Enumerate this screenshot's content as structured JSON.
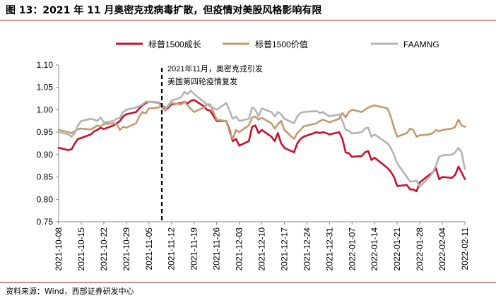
{
  "title": "图 13：2021 年 11 月奥密克戎病毒扩散，但疫情对美股风格影响有限",
  "source": "资料来源：Wind，西部证券研发中心",
  "annotation_line1": "2021年11月，奥密克戎引发",
  "annotation_line2": "美国第四轮疫情复发",
  "chart_data": {
    "type": "line",
    "title": "",
    "xlabel": "",
    "ylabel": "",
    "ylim": [
      0.75,
      1.1
    ],
    "yticks": [
      0.75,
      0.8,
      0.85,
      0.9,
      0.95,
      1.0,
      1.05,
      1.1
    ],
    "xtick_labels": [
      "2021-10-08",
      "2021-10-15",
      "2021-10-22",
      "2021-10-29",
      "2021-11-05",
      "2021-11-12",
      "2021-11-19",
      "2021-11-26",
      "2021-12-03",
      "2021-12-10",
      "2021-12-17",
      "2021-12-24",
      "2021-12-31",
      "2022-01-07",
      "2022-01-14",
      "2022-01-21",
      "2022-01-28",
      "2022-02-04",
      "2022-02-11"
    ],
    "legend_position": "top",
    "grid": false,
    "event_marker": {
      "date": "2021-11-09",
      "style": "dashed"
    },
    "series": [
      {
        "name": "标普1500成长",
        "color": "#c8102e",
        "points": [
          [
            "2021-10-08",
            0.915
          ],
          [
            "2021-10-11",
            0.91
          ],
          [
            "2021-10-12",
            0.912
          ],
          [
            "2021-10-13",
            0.925
          ],
          [
            "2021-10-14",
            0.935
          ],
          [
            "2021-10-15",
            0.937
          ],
          [
            "2021-10-18",
            0.945
          ],
          [
            "2021-10-19",
            0.952
          ],
          [
            "2021-10-20",
            0.955
          ],
          [
            "2021-10-21",
            0.96
          ],
          [
            "2021-10-22",
            0.957
          ],
          [
            "2021-10-25",
            0.965
          ],
          [
            "2021-10-26",
            0.97
          ],
          [
            "2021-10-27",
            0.975
          ],
          [
            "2021-10-28",
            0.985
          ],
          [
            "2021-10-29",
            0.99
          ],
          [
            "2021-11-01",
            0.995
          ],
          [
            "2021-11-02",
            1.003
          ],
          [
            "2021-11-03",
            1.01
          ],
          [
            "2021-11-04",
            1.015
          ],
          [
            "2021-11-05",
            1.018
          ],
          [
            "2021-11-08",
            1.016
          ],
          [
            "2021-11-09",
            1.01
          ],
          [
            "2021-11-10",
            0.998
          ],
          [
            "2021-11-11",
            1.005
          ],
          [
            "2021-11-12",
            1.012
          ],
          [
            "2021-11-15",
            1.015
          ],
          [
            "2021-11-16",
            1.018
          ],
          [
            "2021-11-17",
            1.014
          ],
          [
            "2021-11-18",
            1.02
          ],
          [
            "2021-11-19",
            1.022
          ],
          [
            "2021-11-22",
            1.008
          ],
          [
            "2021-11-23",
            1.0
          ],
          [
            "2021-11-24",
            0.998
          ],
          [
            "2021-11-26",
            0.975
          ],
          [
            "2021-11-29",
            0.975
          ],
          [
            "2021-11-30",
            0.955
          ],
          [
            "2021-12-01",
            0.93
          ],
          [
            "2021-12-02",
            0.935
          ],
          [
            "2021-12-03",
            0.92
          ],
          [
            "2021-12-06",
            0.93
          ],
          [
            "2021-12-07",
            0.962
          ],
          [
            "2021-12-08",
            0.965
          ],
          [
            "2021-12-09",
            0.948
          ],
          [
            "2021-12-10",
            0.955
          ],
          [
            "2021-12-13",
            0.94
          ],
          [
            "2021-12-14",
            0.93
          ],
          [
            "2021-12-15",
            0.948
          ],
          [
            "2021-12-16",
            0.925
          ],
          [
            "2021-12-17",
            0.915
          ],
          [
            "2021-12-20",
            0.905
          ],
          [
            "2021-12-21",
            0.925
          ],
          [
            "2021-12-22",
            0.935
          ],
          [
            "2021-12-23",
            0.94
          ],
          [
            "2021-12-27",
            0.95
          ],
          [
            "2021-12-28",
            0.948
          ],
          [
            "2021-12-29",
            0.95
          ],
          [
            "2021-12-30",
            0.948
          ],
          [
            "2021-12-31",
            0.945
          ],
          [
            "2022-01-03",
            0.95
          ],
          [
            "2022-01-04",
            0.935
          ],
          [
            "2022-01-05",
            0.905
          ],
          [
            "2022-01-06",
            0.903
          ],
          [
            "2022-01-07",
            0.895
          ],
          [
            "2022-01-10",
            0.897
          ],
          [
            "2022-01-11",
            0.905
          ],
          [
            "2022-01-12",
            0.908
          ],
          [
            "2022-01-13",
            0.888
          ],
          [
            "2022-01-14",
            0.893
          ],
          [
            "2022-01-18",
            0.87
          ],
          [
            "2022-01-19",
            0.862
          ],
          [
            "2022-01-20",
            0.85
          ],
          [
            "2022-01-21",
            0.83
          ],
          [
            "2022-01-24",
            0.832
          ],
          [
            "2022-01-25",
            0.822
          ],
          [
            "2022-01-26",
            0.822
          ],
          [
            "2022-01-27",
            0.818
          ],
          [
            "2022-01-28",
            0.838
          ],
          [
            "2022-01-31",
            0.855
          ],
          [
            "2022-02-01",
            0.86
          ],
          [
            "2022-02-02",
            0.87
          ],
          [
            "2022-02-03",
            0.845
          ],
          [
            "2022-02-04",
            0.85
          ],
          [
            "2022-02-07",
            0.848
          ],
          [
            "2022-02-08",
            0.855
          ],
          [
            "2022-02-09",
            0.873
          ],
          [
            "2022-02-10",
            0.86
          ],
          [
            "2022-02-11",
            0.845
          ]
        ]
      },
      {
        "name": "标普1500价值",
        "color": "#c49a6c",
        "points": [
          [
            "2021-10-08",
            0.955
          ],
          [
            "2021-10-11",
            0.95
          ],
          [
            "2021-10-12",
            0.948
          ],
          [
            "2021-10-13",
            0.952
          ],
          [
            "2021-10-14",
            0.957
          ],
          [
            "2021-10-15",
            0.958
          ],
          [
            "2021-10-18",
            0.956
          ],
          [
            "2021-10-19",
            0.96
          ],
          [
            "2021-10-20",
            0.965
          ],
          [
            "2021-10-21",
            0.963
          ],
          [
            "2021-10-22",
            0.968
          ],
          [
            "2021-10-25",
            0.97
          ],
          [
            "2021-10-26",
            0.968
          ],
          [
            "2021-10-27",
            0.955
          ],
          [
            "2021-10-28",
            0.962
          ],
          [
            "2021-10-29",
            0.96
          ],
          [
            "2021-11-01",
            0.97
          ],
          [
            "2021-11-02",
            0.985
          ],
          [
            "2021-11-03",
            0.995
          ],
          [
            "2021-11-04",
            0.992
          ],
          [
            "2021-11-05",
            1.003
          ],
          [
            "2021-11-08",
            1.005
          ],
          [
            "2021-11-09",
            1.01
          ],
          [
            "2021-11-10",
            1.005
          ],
          [
            "2021-11-11",
            1.008
          ],
          [
            "2021-11-12",
            1.015
          ],
          [
            "2021-11-15",
            1.012
          ],
          [
            "2021-11-16",
            1.018
          ],
          [
            "2021-11-17",
            1.01
          ],
          [
            "2021-11-18",
            1.002
          ],
          [
            "2021-11-19",
            0.995
          ],
          [
            "2021-11-22",
            1.005
          ],
          [
            "2021-11-23",
            1.012
          ],
          [
            "2021-11-24",
            1.012
          ],
          [
            "2021-11-26",
            0.978
          ],
          [
            "2021-11-29",
            0.975
          ],
          [
            "2021-11-30",
            0.95
          ],
          [
            "2021-12-01",
            0.935
          ],
          [
            "2021-12-02",
            0.955
          ],
          [
            "2021-12-03",
            0.95
          ],
          [
            "2021-12-06",
            0.965
          ],
          [
            "2021-12-07",
            0.983
          ],
          [
            "2021-12-08",
            0.985
          ],
          [
            "2021-12-09",
            0.978
          ],
          [
            "2021-12-10",
            0.982
          ],
          [
            "2021-12-13",
            0.97
          ],
          [
            "2021-12-14",
            0.958
          ],
          [
            "2021-12-15",
            0.968
          ],
          [
            "2021-12-16",
            0.975
          ],
          [
            "2021-12-17",
            0.955
          ],
          [
            "2021-12-20",
            0.935
          ],
          [
            "2021-12-21",
            0.948
          ],
          [
            "2021-12-22",
            0.955
          ],
          [
            "2021-12-23",
            0.963
          ],
          [
            "2021-12-27",
            0.97
          ],
          [
            "2021-12-28",
            0.975
          ],
          [
            "2021-12-29",
            0.978
          ],
          [
            "2021-12-30",
            0.975
          ],
          [
            "2021-12-31",
            0.972
          ],
          [
            "2022-01-03",
            0.98
          ],
          [
            "2022-01-04",
            0.993
          ],
          [
            "2022-01-05",
            0.983
          ],
          [
            "2022-01-06",
            0.995
          ],
          [
            "2022-01-07",
            1.0
          ],
          [
            "2022-01-10",
            0.995
          ],
          [
            "2022-01-11",
            1.0
          ],
          [
            "2022-01-12",
            1.005
          ],
          [
            "2022-01-13",
            1.008
          ],
          [
            "2022-01-14",
            1.01
          ],
          [
            "2022-01-18",
            1.003
          ],
          [
            "2022-01-19",
            0.985
          ],
          [
            "2022-01-20",
            0.96
          ],
          [
            "2022-01-21",
            0.94
          ],
          [
            "2022-01-24",
            0.948
          ],
          [
            "2022-01-25",
            0.958
          ],
          [
            "2022-01-26",
            0.955
          ],
          [
            "2022-01-27",
            0.94
          ],
          [
            "2022-01-28",
            0.943
          ],
          [
            "2022-01-31",
            0.945
          ],
          [
            "2022-02-01",
            0.948
          ],
          [
            "2022-02-02",
            0.955
          ],
          [
            "2022-02-03",
            0.952
          ],
          [
            "2022-02-04",
            0.955
          ],
          [
            "2022-02-07",
            0.958
          ],
          [
            "2022-02-08",
            0.962
          ],
          [
            "2022-02-09",
            0.978
          ],
          [
            "2022-02-10",
            0.965
          ],
          [
            "2022-02-11",
            0.962
          ]
        ]
      },
      {
        "name": "FAAMNG",
        "color": "#b3b3b3",
        "points": [
          [
            "2021-10-08",
            0.95
          ],
          [
            "2021-10-11",
            0.945
          ],
          [
            "2021-10-12",
            0.94
          ],
          [
            "2021-10-13",
            0.948
          ],
          [
            "2021-10-14",
            0.965
          ],
          [
            "2021-10-15",
            0.975
          ],
          [
            "2021-10-18",
            0.98
          ],
          [
            "2021-10-19",
            0.978
          ],
          [
            "2021-10-20",
            0.975
          ],
          [
            "2021-10-21",
            0.983
          ],
          [
            "2021-10-22",
            0.972
          ],
          [
            "2021-10-25",
            0.975
          ],
          [
            "2021-10-26",
            0.98
          ],
          [
            "2021-10-27",
            0.982
          ],
          [
            "2021-10-28",
            0.995
          ],
          [
            "2021-10-29",
            1.0
          ],
          [
            "2021-11-01",
            1.005
          ],
          [
            "2021-11-02",
            1.008
          ],
          [
            "2021-11-03",
            1.012
          ],
          [
            "2021-11-04",
            1.018
          ],
          [
            "2021-11-05",
            1.018
          ],
          [
            "2021-11-08",
            1.015
          ],
          [
            "2021-11-09",
            1.005
          ],
          [
            "2021-11-10",
            0.998
          ],
          [
            "2021-11-11",
            1.01
          ],
          [
            "2021-11-12",
            1.02
          ],
          [
            "2021-11-15",
            1.028
          ],
          [
            "2021-11-16",
            1.04
          ],
          [
            "2021-11-17",
            1.035
          ],
          [
            "2021-11-18",
            1.043
          ],
          [
            "2021-11-19",
            1.035
          ],
          [
            "2021-11-22",
            1.018
          ],
          [
            "2021-11-23",
            1.012
          ],
          [
            "2021-11-24",
            1.008
          ],
          [
            "2021-11-26",
            1.0
          ],
          [
            "2021-11-29",
            1.015
          ],
          [
            "2021-11-30",
            0.998
          ],
          [
            "2021-12-01",
            0.98
          ],
          [
            "2021-12-02",
            0.985
          ],
          [
            "2021-12-03",
            0.975
          ],
          [
            "2021-12-06",
            0.98
          ],
          [
            "2021-12-07",
            1.005
          ],
          [
            "2021-12-08",
            1.0
          ],
          [
            "2021-12-09",
            0.985
          ],
          [
            "2021-12-10",
            1.003
          ],
          [
            "2021-12-13",
            0.995
          ],
          [
            "2021-12-14",
            0.985
          ],
          [
            "2021-12-15",
            0.995
          ],
          [
            "2021-12-16",
            0.99
          ],
          [
            "2021-12-17",
            0.98
          ],
          [
            "2021-12-20",
            0.97
          ],
          [
            "2021-12-21",
            0.985
          ],
          [
            "2021-12-22",
            0.993
          ],
          [
            "2021-12-23",
            0.995
          ],
          [
            "2021-12-27",
            0.997
          ],
          [
            "2021-12-28",
            0.993
          ],
          [
            "2021-12-29",
            0.995
          ],
          [
            "2021-12-30",
            0.99
          ],
          [
            "2021-12-31",
            0.985
          ],
          [
            "2022-01-03",
            0.99
          ],
          [
            "2022-01-04",
            0.975
          ],
          [
            "2022-01-05",
            0.955
          ],
          [
            "2022-01-06",
            0.953
          ],
          [
            "2022-01-07",
            0.947
          ],
          [
            "2022-01-10",
            0.95
          ],
          [
            "2022-01-11",
            0.958
          ],
          [
            "2022-01-12",
            0.96
          ],
          [
            "2022-01-13",
            0.94
          ],
          [
            "2022-01-14",
            0.945
          ],
          [
            "2022-01-18",
            0.925
          ],
          [
            "2022-01-19",
            0.915
          ],
          [
            "2022-01-20",
            0.9
          ],
          [
            "2022-01-21",
            0.88
          ],
          [
            "2022-01-24",
            0.85
          ],
          [
            "2022-01-25",
            0.84
          ],
          [
            "2022-01-26",
            0.84
          ],
          [
            "2022-01-27",
            0.842
          ],
          [
            "2022-01-28",
            0.828
          ],
          [
            "2022-01-31",
            0.85
          ],
          [
            "2022-02-01",
            0.86
          ],
          [
            "2022-02-02",
            0.875
          ],
          [
            "2022-02-03",
            0.895
          ],
          [
            "2022-02-04",
            0.898
          ],
          [
            "2022-02-07",
            0.9
          ],
          [
            "2022-02-08",
            0.905
          ],
          [
            "2022-02-09",
            0.915
          ],
          [
            "2022-02-10",
            0.905
          ],
          [
            "2022-02-11",
            0.868
          ]
        ]
      }
    ]
  }
}
